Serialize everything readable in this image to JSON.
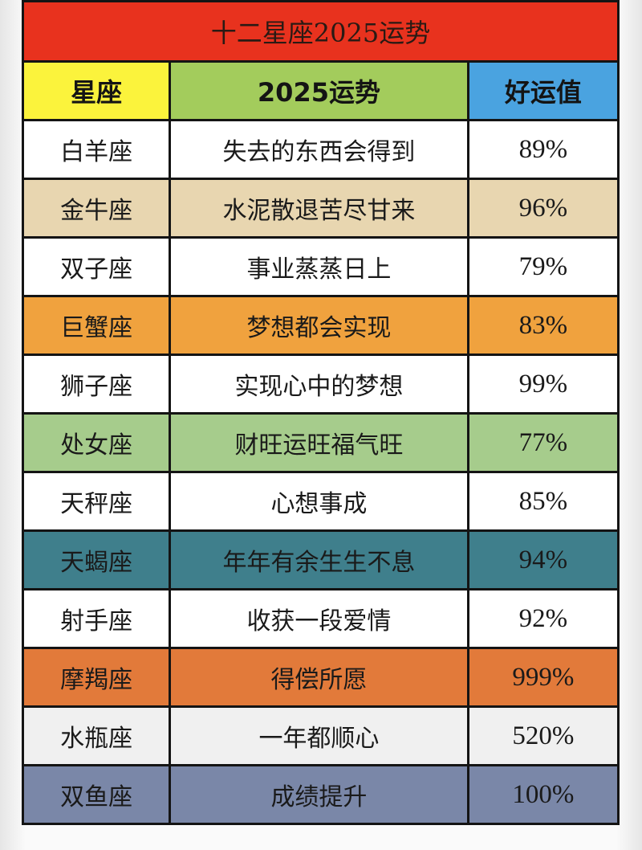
{
  "title": "十二星座2025运势",
  "headers": [
    "星座",
    "2025运势",
    "好运值"
  ],
  "header_colors": [
    "#fbf33c",
    "#a3cc5c",
    "#4aa3e0"
  ],
  "title_color": "#e8321e",
  "rows": [
    {
      "sign": "白羊座",
      "fortune": "失去的东西会得到",
      "luck": "89%",
      "color": "#ffffff"
    },
    {
      "sign": "金牛座",
      "fortune": "水泥散退苦尽甘来",
      "luck": "96%",
      "color": "#e8d6b0"
    },
    {
      "sign": "双子座",
      "fortune": "事业蒸蒸日上",
      "luck": "79%",
      "color": "#ffffff"
    },
    {
      "sign": "巨蟹座",
      "fortune": "梦想都会实现",
      "luck": "83%",
      "color": "#f0a23e"
    },
    {
      "sign": "狮子座",
      "fortune": "实现心中的梦想",
      "luck": "99%",
      "color": "#ffffff"
    },
    {
      "sign": "处女座",
      "fortune": "财旺运旺福气旺",
      "luck": "77%",
      "color": "#a6cc8c"
    },
    {
      "sign": "天秤座",
      "fortune": "心想事成",
      "luck": "85%",
      "color": "#ffffff"
    },
    {
      "sign": "天蝎座",
      "fortune": "年年有余生生不息",
      "luck": "94%",
      "color": "#3f7f8c"
    },
    {
      "sign": "射手座",
      "fortune": "收获一段爱情",
      "luck": "92%",
      "color": "#ffffff"
    },
    {
      "sign": "摩羯座",
      "fortune": "得偿所愿",
      "luck": "999%",
      "color": "#e27a3a"
    },
    {
      "sign": "水瓶座",
      "fortune": "一年都顺心",
      "luck": "520%",
      "color": "#f0f0f0"
    },
    {
      "sign": "双鱼座",
      "fortune": "成绩提升",
      "luck": "100%",
      "color": "#7a87a8"
    }
  ]
}
